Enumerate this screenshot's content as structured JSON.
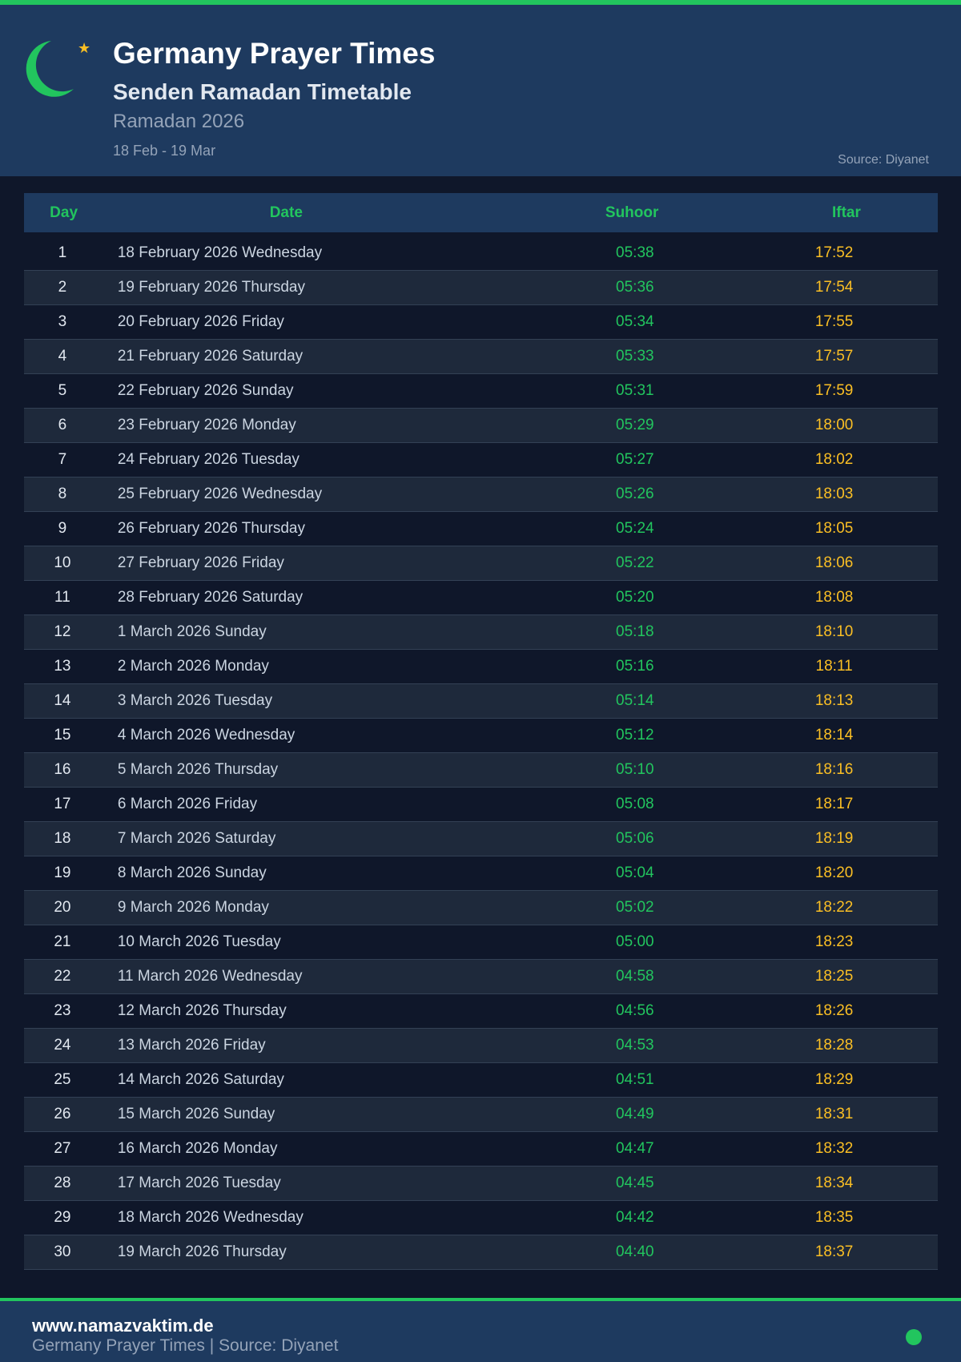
{
  "header": {
    "title": "Germany Prayer Times",
    "subtitle": "Senden Ramadan Timetable",
    "year": "Ramadan 2026",
    "range": "18 Feb - 19 Mar",
    "source": "Source: Diyanet",
    "logo_icons": [
      "crescent-moon-icon",
      "star-icon"
    ]
  },
  "colors": {
    "accent": "#22c55e",
    "iftar": "#fbbf24",
    "header_bg": "#1e3a5f",
    "page_bg": "#0f172a"
  },
  "table": {
    "columns": [
      "Day",
      "Date",
      "Suhoor",
      "Iftar"
    ],
    "rows": [
      [
        "1",
        "18 February 2026 Wednesday",
        "05:38",
        "17:52"
      ],
      [
        "2",
        "19 February 2026 Thursday",
        "05:36",
        "17:54"
      ],
      [
        "3",
        "20 February 2026 Friday",
        "05:34",
        "17:55"
      ],
      [
        "4",
        "21 February 2026 Saturday",
        "05:33",
        "17:57"
      ],
      [
        "5",
        "22 February 2026 Sunday",
        "05:31",
        "17:59"
      ],
      [
        "6",
        "23 February 2026 Monday",
        "05:29",
        "18:00"
      ],
      [
        "7",
        "24 February 2026 Tuesday",
        "05:27",
        "18:02"
      ],
      [
        "8",
        "25 February 2026 Wednesday",
        "05:26",
        "18:03"
      ],
      [
        "9",
        "26 February 2026 Thursday",
        "05:24",
        "18:05"
      ],
      [
        "10",
        "27 February 2026 Friday",
        "05:22",
        "18:06"
      ],
      [
        "11",
        "28 February 2026 Saturday",
        "05:20",
        "18:08"
      ],
      [
        "12",
        "1 March 2026 Sunday",
        "05:18",
        "18:10"
      ],
      [
        "13",
        "2 March 2026 Monday",
        "05:16",
        "18:11"
      ],
      [
        "14",
        "3 March 2026 Tuesday",
        "05:14",
        "18:13"
      ],
      [
        "15",
        "4 March 2026 Wednesday",
        "05:12",
        "18:14"
      ],
      [
        "16",
        "5 March 2026 Thursday",
        "05:10",
        "18:16"
      ],
      [
        "17",
        "6 March 2026 Friday",
        "05:08",
        "18:17"
      ],
      [
        "18",
        "7 March 2026 Saturday",
        "05:06",
        "18:19"
      ],
      [
        "19",
        "8 March 2026 Sunday",
        "05:04",
        "18:20"
      ],
      [
        "20",
        "9 March 2026 Monday",
        "05:02",
        "18:22"
      ],
      [
        "21",
        "10 March 2026 Tuesday",
        "05:00",
        "18:23"
      ],
      [
        "22",
        "11 March 2026 Wednesday",
        "04:58",
        "18:25"
      ],
      [
        "23",
        "12 March 2026 Thursday",
        "04:56",
        "18:26"
      ],
      [
        "24",
        "13 March 2026 Friday",
        "04:53",
        "18:28"
      ],
      [
        "25",
        "14 March 2026 Saturday",
        "04:51",
        "18:29"
      ],
      [
        "26",
        "15 March 2026 Sunday",
        "04:49",
        "18:31"
      ],
      [
        "27",
        "16 March 2026 Monday",
        "04:47",
        "18:32"
      ],
      [
        "28",
        "17 March 2026 Tuesday",
        "04:45",
        "18:34"
      ],
      [
        "29",
        "18 March 2026 Wednesday",
        "04:42",
        "18:35"
      ],
      [
        "30",
        "19 March 2026 Thursday",
        "04:40",
        "18:37"
      ]
    ]
  },
  "footer": {
    "url": "www.namazvaktim.de",
    "subtitle": "Germany Prayer Times | Source: Diyanet"
  }
}
